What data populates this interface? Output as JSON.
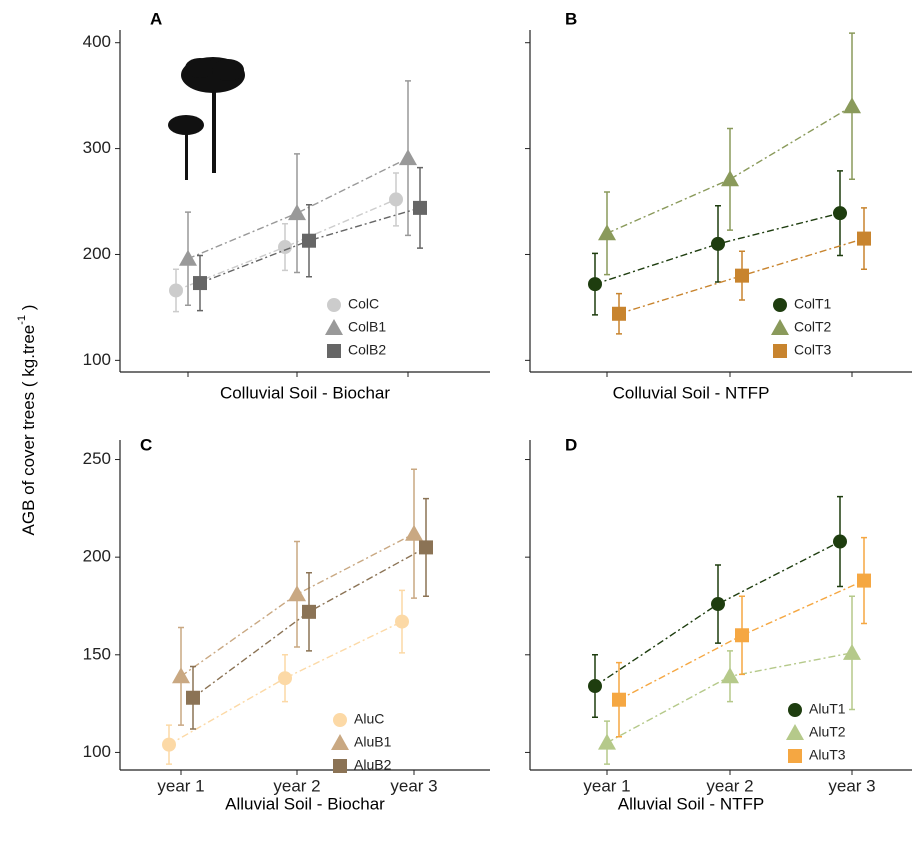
{
  "ylabel": [
    "AGB of cover trees ( kg.tree",
    "-1",
    " )"
  ],
  "chart_data": [
    {
      "type": "line",
      "panel": "A",
      "xlabel": "Colluvial Soil - Biochar",
      "categories": [
        null,
        null,
        null
      ],
      "ylim": [
        89,
        412
      ],
      "yticks": [
        100,
        200,
        300,
        400
      ],
      "ytick_labels": true,
      "legend": "lower right",
      "series": [
        {
          "name": "ColC",
          "color": "#cccccc",
          "marker": "circle",
          "values": [
            166,
            207,
            252
          ],
          "errors": [
            20,
            22,
            25
          ]
        },
        {
          "name": "ColB1",
          "color": "#999999",
          "marker": "triangle",
          "values": [
            196,
            239,
            291
          ],
          "errors": [
            44,
            56,
            73
          ]
        },
        {
          "name": "ColB2",
          "color": "#666666",
          "marker": "square",
          "values": [
            173,
            213,
            244
          ],
          "errors": [
            26,
            34,
            38
          ]
        }
      ]
    },
    {
      "type": "line",
      "panel": "B",
      "xlabel": "Colluvial Soil - NTFP",
      "categories": [
        null,
        null,
        null
      ],
      "ylim": [
        89,
        412
      ],
      "yticks": [
        100,
        200,
        300,
        400
      ],
      "ytick_labels": false,
      "legend": "lower right",
      "series": [
        {
          "name": "ColT1",
          "color": "#1e3d0f",
          "marker": "circle",
          "values": [
            172,
            210,
            239
          ],
          "errors": [
            29,
            36,
            40
          ]
        },
        {
          "name": "ColT2",
          "color": "#8a9a5b",
          "marker": "triangle",
          "values": [
            220,
            271,
            340
          ],
          "errors": [
            39,
            48,
            69
          ]
        },
        {
          "name": "ColT3",
          "color": "#c8842e",
          "marker": "square",
          "values": [
            144,
            180,
            215
          ],
          "errors": [
            19,
            23,
            29
          ]
        }
      ]
    },
    {
      "type": "line",
      "panel": "C",
      "xlabel": "Alluvial Soil - Biochar",
      "categories": [
        "year 1",
        "year 2",
        "year 3"
      ],
      "ylim": [
        91,
        260
      ],
      "yticks": [
        100,
        150,
        200,
        250
      ],
      "ytick_labels": true,
      "legend": "lower right",
      "series": [
        {
          "name": "AluC",
          "color": "#fcd9a6",
          "marker": "circle",
          "values": [
            104,
            138,
            167
          ],
          "errors": [
            10,
            12,
            16
          ]
        },
        {
          "name": "AluB1",
          "color": "#c9a882",
          "marker": "triangle",
          "values": [
            139,
            181,
            212
          ],
          "errors": [
            25,
            27,
            33
          ]
        },
        {
          "name": "AluB2",
          "color": "#8b7355",
          "marker": "square",
          "values": [
            128,
            172,
            205
          ],
          "errors": [
            16,
            20,
            25
          ]
        }
      ]
    },
    {
      "type": "line",
      "panel": "D",
      "xlabel": "Alluvial Soil - NTFP",
      "categories": [
        "year 1",
        "year 2",
        "year 3"
      ],
      "ylim": [
        91,
        260
      ],
      "yticks": [
        100,
        150,
        200,
        250
      ],
      "ytick_labels": false,
      "legend": "lower right",
      "series": [
        {
          "name": "AluT1",
          "color": "#1e3d0f",
          "marker": "circle",
          "values": [
            134,
            176,
            208
          ],
          "errors": [
            16,
            20,
            23
          ]
        },
        {
          "name": "AluT2",
          "color": "#b5c98a",
          "marker": "triangle",
          "values": [
            105,
            139,
            151
          ],
          "errors": [
            11,
            13,
            29
          ]
        },
        {
          "name": "AluT3",
          "color": "#f5a742",
          "marker": "square",
          "values": [
            127,
            160,
            188
          ],
          "errors": [
            19,
            20,
            22
          ]
        }
      ]
    }
  ]
}
